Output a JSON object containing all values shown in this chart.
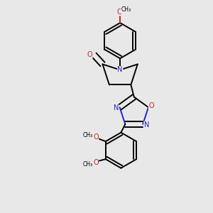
{
  "background_color": "#e8e8e8",
  "bond_color": "#000000",
  "N_color": "#2222cc",
  "O_color": "#cc2222",
  "fig_width": 3.0,
  "fig_height": 3.0,
  "dpi": 100,
  "xlim": [
    0.05,
    0.95
  ],
  "ylim": [
    0.02,
    1.02
  ]
}
